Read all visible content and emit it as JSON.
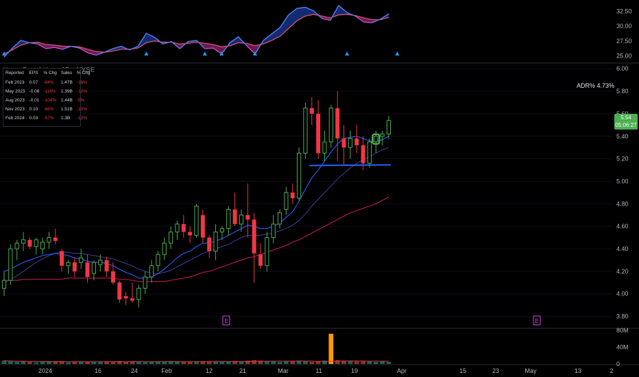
{
  "chart_data": [
    {
      "type": "area",
      "name": "top-indicator",
      "ylim": [
        24.0,
        33.5
      ],
      "yticks": [
        "32.50",
        "30.00",
        "27.50",
        "25.00"
      ],
      "ytick_values": [
        32.5,
        30.0,
        27.5,
        25.0
      ],
      "series": [
        {
          "role": "fast",
          "color": "#4f7be0",
          "values": [
            24.8,
            26.3,
            27.6,
            27.2,
            27.0,
            26.2,
            26.4,
            26.1,
            26.6,
            26.3,
            25.5,
            25.1,
            25.6,
            26.2,
            26.6,
            26.0,
            26.6,
            28.8,
            28.1,
            27.0,
            27.4,
            26.2,
            27.4,
            27.6,
            26.2,
            26.3,
            25.3,
            27.2,
            28.2,
            26.7,
            25.3,
            27.6,
            28.7,
            29.8,
            31.9,
            33.0,
            33.2,
            32.6,
            31.3,
            31.0,
            33.5,
            32.3,
            31.7,
            30.7,
            30.6,
            31.2,
            32.1
          ]
        },
        {
          "role": "slow",
          "color": "#e0507a",
          "values": [
            25.3,
            26.0,
            26.8,
            27.2,
            27.3,
            26.9,
            26.8,
            26.6,
            26.6,
            26.5,
            26.1,
            25.7,
            25.6,
            25.8,
            26.1,
            26.1,
            26.3,
            27.2,
            27.5,
            27.3,
            27.3,
            27.0,
            27.1,
            27.3,
            27.1,
            26.9,
            26.5,
            26.7,
            27.2,
            27.1,
            26.7,
            27.0,
            27.6,
            28.3,
            29.6,
            30.9,
            31.7,
            32.0,
            31.7,
            31.4,
            31.9,
            32.0,
            31.8,
            31.4,
            31.1,
            31.1,
            31.5
          ]
        }
      ],
      "markers": {
        "color": "#2196f3",
        "shape": "triangle-up",
        "at_index": [
          0,
          17,
          24,
          26,
          30,
          41,
          47
        ]
      }
    },
    {
      "type": "candlestick",
      "name": "price",
      "symbol_label": "HanesBrands Inc · 1D · NYSE",
      "ylim": [
        3.7,
        6.05
      ],
      "yticks": [
        "6.00",
        "5.80",
        "5.60",
        "5.40",
        "5.20",
        "5.00",
        "4.80",
        "4.60",
        "4.40",
        "4.20",
        "4.00",
        "3.80"
      ],
      "ytick_values": [
        6.0,
        5.8,
        5.6,
        5.4,
        5.2,
        5.0,
        4.8,
        4.6,
        4.4,
        4.2,
        4.0,
        3.8
      ],
      "x": [
        "2024-01-02",
        "2024-01-03",
        "2024-01-04",
        "2024-01-05",
        "2024-01-08",
        "2024-01-09",
        "2024-01-10",
        "2024-01-11",
        "2024-01-12",
        "2024-01-16",
        "2024-01-17",
        "2024-01-18",
        "2024-01-19",
        "2024-01-22",
        "2024-01-23",
        "2024-01-24",
        "2024-01-25",
        "2024-01-26",
        "2024-01-29",
        "2024-01-30",
        "2024-01-31",
        "2024-02-01",
        "2024-02-02",
        "2024-02-05",
        "2024-02-06",
        "2024-02-07",
        "2024-02-08",
        "2024-02-09",
        "2024-02-12",
        "2024-02-13",
        "2024-02-14",
        "2024-02-15",
        "2024-02-16",
        "2024-02-20",
        "2024-02-21",
        "2024-02-22",
        "2024-02-23",
        "2024-02-26",
        "2024-02-27",
        "2024-02-28",
        "2024-02-29",
        "2024-03-01",
        "2024-03-04",
        "2024-03-05",
        "2024-03-06",
        "2024-03-07",
        "2024-03-08",
        "2024-03-11",
        "2024-03-12",
        "2024-03-13",
        "2024-03-14",
        "2024-03-15",
        "2024-03-18",
        "2024-03-19",
        "2024-03-20",
        "2024-03-21",
        "2024-03-22",
        "2024-03-25",
        "2024-03-26",
        "2024-03-27",
        "2024-03-28"
      ],
      "candles": [
        [
          4.05,
          4.2,
          3.98,
          4.12
        ],
        [
          4.12,
          4.44,
          4.08,
          4.4
        ],
        [
          4.4,
          4.48,
          4.3,
          4.45
        ],
        [
          4.45,
          4.55,
          4.38,
          4.48
        ],
        [
          4.48,
          4.5,
          4.4,
          4.42
        ],
        [
          4.42,
          4.5,
          4.35,
          4.48
        ],
        [
          4.4,
          4.5,
          4.35,
          4.46
        ],
        [
          4.46,
          4.55,
          4.4,
          4.5
        ],
        [
          4.5,
          4.58,
          4.44,
          4.47
        ],
        [
          4.38,
          4.4,
          4.2,
          4.25
        ],
        [
          4.25,
          4.3,
          4.18,
          4.28
        ],
        [
          4.28,
          4.32,
          4.15,
          4.2
        ],
        [
          4.28,
          4.4,
          4.22,
          4.32
        ],
        [
          4.28,
          4.35,
          4.1,
          4.15
        ],
        [
          4.18,
          4.3,
          4.12,
          4.28
        ],
        [
          4.26,
          4.35,
          4.2,
          4.3
        ],
        [
          4.3,
          4.33,
          4.15,
          4.2
        ],
        [
          4.2,
          4.28,
          4.08,
          4.1
        ],
        [
          4.1,
          4.12,
          3.92,
          3.95
        ],
        [
          3.98,
          4.02,
          3.9,
          3.96
        ],
        [
          3.96,
          4.1,
          3.92,
          3.94
        ],
        [
          3.95,
          4.08,
          3.88,
          4.05
        ],
        [
          4.05,
          4.2,
          4.0,
          4.15
        ],
        [
          4.15,
          4.3,
          4.1,
          4.25
        ],
        [
          4.25,
          4.38,
          4.2,
          4.35
        ],
        [
          4.35,
          4.5,
          4.3,
          4.45
        ],
        [
          4.45,
          4.6,
          4.4,
          4.55
        ],
        [
          4.55,
          4.65,
          4.48,
          4.62
        ],
        [
          4.62,
          4.7,
          4.5,
          4.55
        ],
        [
          4.55,
          4.6,
          4.45,
          4.52
        ],
        [
          4.52,
          4.8,
          4.5,
          4.78
        ],
        [
          4.7,
          4.75,
          4.45,
          4.5
        ],
        [
          4.5,
          4.52,
          4.32,
          4.38
        ],
        [
          4.38,
          4.62,
          4.3,
          4.55
        ],
        [
          4.55,
          4.6,
          4.48,
          4.58
        ],
        [
          4.58,
          4.78,
          4.52,
          4.75
        ],
        [
          4.75,
          4.9,
          4.6,
          4.62
        ],
        [
          4.62,
          4.75,
          4.55,
          4.7
        ],
        [
          4.7,
          4.98,
          4.5,
          4.66
        ],
        [
          4.66,
          4.72,
          4.1,
          4.36
        ],
        [
          4.35,
          4.45,
          4.22,
          4.25
        ],
        [
          4.25,
          4.55,
          4.2,
          4.5
        ],
        [
          4.5,
          4.7,
          4.45,
          4.62
        ],
        [
          4.62,
          4.75,
          4.58,
          4.72
        ],
        [
          4.75,
          4.95,
          4.7,
          4.9
        ],
        [
          4.9,
          4.98,
          4.8,
          4.85
        ],
        [
          4.85,
          5.3,
          4.83,
          5.25
        ],
        [
          5.25,
          5.7,
          5.2,
          5.65
        ],
        [
          5.65,
          5.75,
          5.5,
          5.6
        ],
        [
          5.6,
          5.72,
          5.2,
          5.25
        ],
        [
          5.25,
          5.45,
          5.18,
          5.35
        ],
        [
          5.35,
          5.68,
          5.3,
          5.65
        ],
        [
          5.65,
          5.8,
          5.18,
          5.38
        ],
        [
          5.38,
          5.5,
          5.15,
          5.3
        ],
        [
          5.3,
          5.45,
          5.2,
          5.38
        ],
        [
          5.38,
          5.5,
          5.25,
          5.32
        ],
        [
          5.32,
          5.4,
          5.1,
          5.16
        ],
        [
          5.16,
          5.38,
          5.12,
          5.35
        ],
        [
          5.35,
          5.45,
          5.25,
          5.4
        ],
        [
          5.4,
          5.45,
          5.32,
          5.42
        ],
        [
          5.42,
          5.58,
          5.38,
          5.54
        ]
      ],
      "ma_fast": [
        4.2,
        4.22,
        4.25,
        4.28,
        4.3,
        4.32,
        4.34,
        4.35,
        4.36,
        4.35,
        4.34,
        4.32,
        4.31,
        4.29,
        4.28,
        4.28,
        4.27,
        4.25,
        4.22,
        4.19,
        4.17,
        4.14,
        4.14,
        4.15,
        4.18,
        4.22,
        4.27,
        4.32,
        4.36,
        4.38,
        4.42,
        4.45,
        4.45,
        4.47,
        4.49,
        4.52,
        4.55,
        4.58,
        4.61,
        4.6,
        4.58,
        4.58,
        4.6,
        4.63,
        4.68,
        4.73,
        4.82,
        4.93,
        5.03,
        5.1,
        5.18,
        5.26,
        5.33,
        5.38,
        5.39,
        5.4,
        5.38,
        5.36,
        5.35,
        5.37,
        5.4
      ],
      "ma_mid": [
        4.1,
        4.13,
        4.16,
        4.2,
        4.24,
        4.28,
        4.31,
        4.34,
        4.36,
        4.37,
        4.37,
        4.36,
        4.36,
        4.35,
        4.34,
        4.33,
        4.32,
        4.31,
        4.29,
        4.27,
        4.25,
        4.22,
        4.2,
        4.18,
        4.18,
        4.19,
        4.21,
        4.24,
        4.27,
        4.3,
        4.33,
        4.36,
        4.38,
        4.4,
        4.42,
        4.44,
        4.47,
        4.5,
        4.52,
        4.52,
        4.52,
        4.53,
        4.54,
        4.56,
        4.58,
        4.61,
        4.65,
        4.71,
        4.78,
        4.84,
        4.9,
        4.96,
        5.02,
        5.07,
        5.12,
        5.16,
        5.19,
        5.22,
        5.25,
        5.28,
        5.3
      ],
      "ma_slow": [
        4.12,
        4.12,
        4.12,
        4.13,
        4.13,
        4.13,
        4.13,
        4.13,
        4.13,
        4.13,
        4.14,
        4.14,
        4.14,
        4.14,
        4.14,
        4.14,
        4.14,
        4.14,
        4.13,
        4.13,
        4.12,
        4.11,
        4.11,
        4.11,
        4.11,
        4.11,
        4.12,
        4.13,
        4.14,
        4.15,
        4.17,
        4.19,
        4.2,
        4.22,
        4.24,
        4.26,
        4.28,
        4.3,
        4.32,
        4.33,
        4.35,
        4.37,
        4.39,
        4.41,
        4.43,
        4.46,
        4.48,
        4.51,
        4.54,
        4.57,
        4.6,
        4.63,
        4.66,
        4.69,
        4.72,
        4.74,
        4.76,
        4.78,
        4.8,
        4.83,
        4.86
      ],
      "support_line": {
        "value": 5.14,
        "color": "#2962ff",
        "from_index": 48,
        "to_index": 60
      },
      "highlight_index": 58,
      "earnings_markers": {
        "label": "E",
        "dates": [
          "2024-02-15",
          "2024-05-01"
        ]
      },
      "last_price": "5.54",
      "countdown": "05:06:27",
      "adr_label": "ADR% 4.73%",
      "earnings_table": {
        "headers": [
          "Reported",
          "EPS",
          "% Chg",
          "Sales",
          "% Chg"
        ],
        "rows": [
          [
            "Feb 2023",
            "0.07",
            "-84%",
            "1.47B",
            "-16%"
          ],
          [
            "May 2023",
            "-0.06",
            "-118%",
            "1.39B",
            "-12%"
          ],
          [
            "Aug 2023",
            "-0.01",
            "-104%",
            "1.44B",
            "-5%"
          ],
          [
            "Nov 2023",
            "0.10",
            "-66%",
            "1.51B",
            "-10%"
          ],
          [
            "Feb 2024",
            "0.03",
            "-57%",
            "1.3B",
            "-12%"
          ]
        ]
      }
    },
    {
      "type": "bar",
      "name": "volume",
      "ylim": [
        0,
        85
      ],
      "yticks": [
        "80M",
        "40M",
        "0"
      ],
      "ytick_values": [
        80,
        40,
        0
      ],
      "values": [
        8,
        6,
        5,
        7,
        5,
        4,
        6,
        5,
        6,
        5,
        4,
        5,
        6,
        6,
        5,
        5,
        6,
        5,
        7,
        5,
        6,
        5,
        4,
        5,
        6,
        5,
        7,
        6,
        5,
        5,
        6,
        6,
        5,
        5,
        5,
        6,
        7,
        6,
        8,
        9,
        8,
        7,
        6,
        5,
        6,
        6,
        8,
        7,
        5,
        6,
        8,
        72,
        9,
        8,
        7,
        6,
        6,
        6,
        5,
        6,
        5
      ],
      "up_color": "#26a69a",
      "down_color": "#ef5350",
      "spike_color": "#ff9800",
      "ma_color": "#e04040"
    }
  ],
  "x_axis": {
    "labels": [
      "2024",
      "16",
      "24",
      "Feb",
      "12",
      "21",
      "Mar",
      "11",
      "19",
      "Apr",
      "15",
      "23",
      "May",
      "13",
      "2"
    ]
  }
}
